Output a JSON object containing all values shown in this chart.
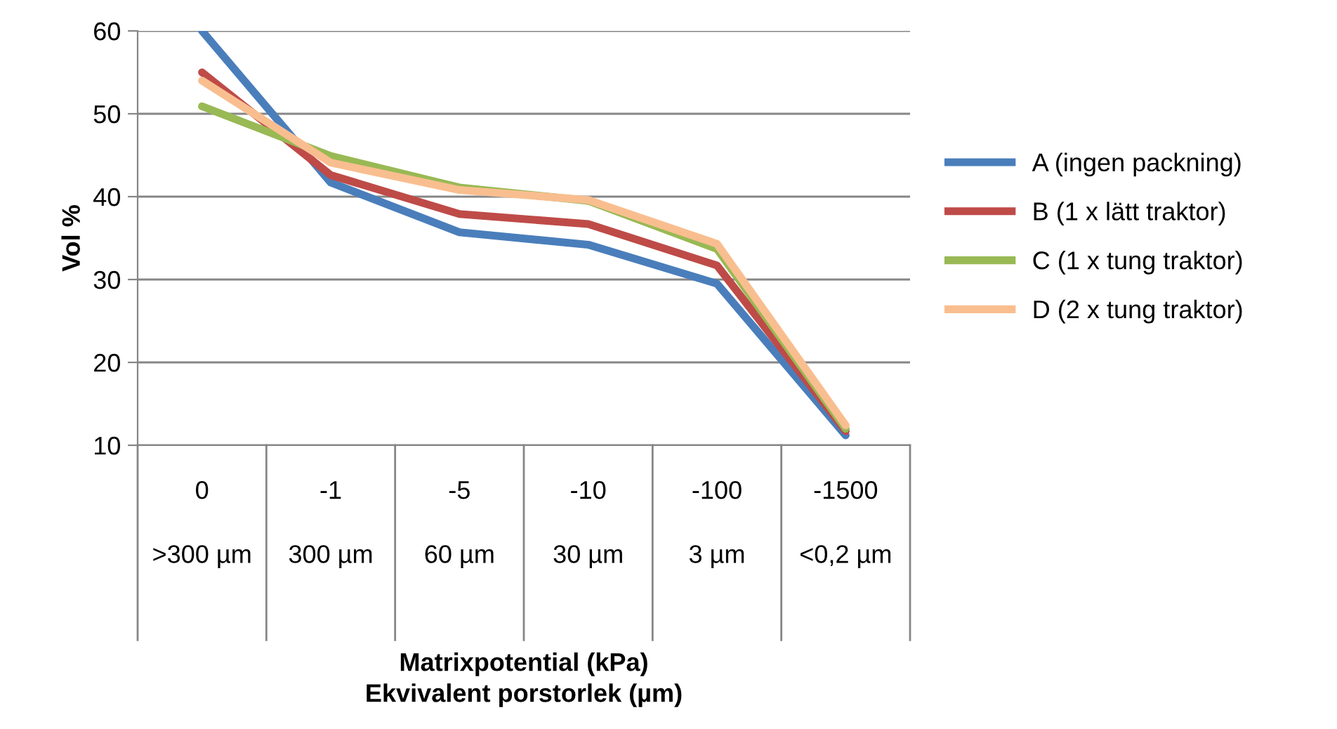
{
  "chart_data": {
    "type": "line",
    "annotations": [
      "Matrixpotential (kPa)\nEkvivalent porstorlek (µm)"
    ],
    "ylabel": "Vol %",
    "categories": [
      "0\n>300 µm",
      "-1\n300 µm",
      "-5\n60 µm",
      "-10\n30 µm",
      "-100\n3 µm",
      "-1500\n<0,2 µm"
    ],
    "series": [
      {
        "name": "A (ingen packning)",
        "color": "#4a7ebb",
        "values": [
          60,
          41.7,
          35.7,
          34.2,
          29.5,
          11.2
        ]
      },
      {
        "name": "B (1 x lätt traktor)",
        "color": "#be4b48",
        "values": [
          55.0,
          42.6,
          37.9,
          36.7,
          31.7,
          11.7
        ]
      },
      {
        "name": "C (1 x tung traktor)",
        "color": "#98b954",
        "values": [
          50.9,
          44.9,
          41.1,
          39.5,
          33.7,
          12.0
        ]
      },
      {
        "name": "D (2 x tung traktor)",
        "color": "#f9be8f",
        "values": [
          54.0,
          44.1,
          40.8,
          39.6,
          34.3,
          12.4
        ]
      }
    ],
    "ylim": [
      10,
      60
    ],
    "yticks": [
      10,
      20,
      30,
      40,
      50,
      60
    ],
    "grid": "y",
    "legend": "right",
    "marker": "none",
    "line_style": "solid"
  }
}
